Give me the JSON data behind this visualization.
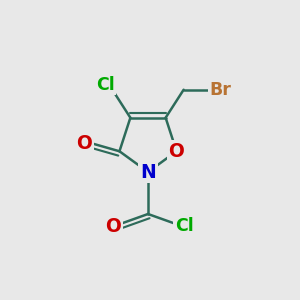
{
  "bg_color": "#e8e8e8",
  "bond_color": "#2d6b5a",
  "bond_lw": 1.8,
  "figsize": [
    3.0,
    3.0
  ],
  "dpi": 100,
  "atom_styles": {
    "N": {
      "color": "#0000cc",
      "fontsize": 13.5,
      "fontweight": "bold"
    },
    "O": {
      "color": "#cc0000",
      "fontsize": 13.5,
      "fontweight": "bold"
    },
    "Cl": {
      "color": "#00aa00",
      "fontsize": 12.5,
      "fontweight": "bold"
    },
    "Br": {
      "color": "#b87333",
      "fontsize": 12.5,
      "fontweight": "bold"
    }
  }
}
